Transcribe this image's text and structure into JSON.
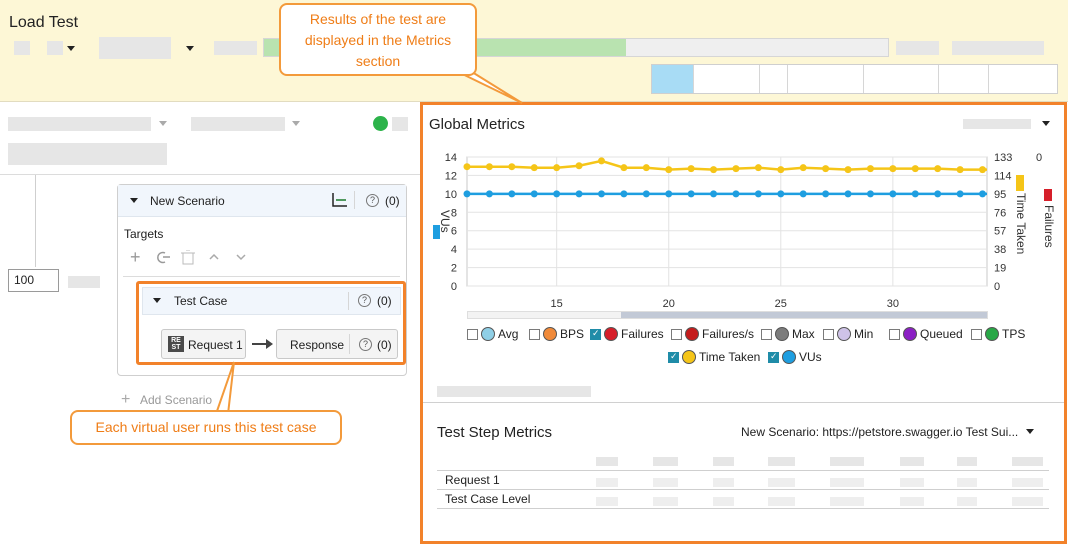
{
  "header": {
    "title": "Load Test",
    "progress_fraction": 0.58,
    "bg_color": "#fdf7d6"
  },
  "callouts": {
    "metrics": "Results of the test are displayed in the Metrics section",
    "test_case": "Each virtual user runs this test case"
  },
  "left": {
    "vus_value": "100",
    "scenario": {
      "name": "New Scenario",
      "help": "?",
      "count": "(0)",
      "targets_label": "Targets"
    },
    "test_case": {
      "name": "Test Case",
      "help": "?",
      "count": "(0)"
    },
    "request": {
      "badge_top": "RE",
      "badge_bottom": "ST",
      "label": "Request 1"
    },
    "response": {
      "label": "Response",
      "help": "?",
      "count": "(0)"
    },
    "add_scenario": "Add Scenario",
    "status_color": "#2cb34a"
  },
  "global_metrics": {
    "title": "Global Metrics"
  },
  "chart_data": {
    "type": "line",
    "x": [
      11,
      12,
      13,
      14,
      15,
      16,
      17,
      18,
      19,
      20,
      21,
      22,
      23,
      24,
      25,
      26,
      27,
      28,
      29,
      30,
      31,
      32,
      33,
      34
    ],
    "xticks": [
      15,
      20,
      25,
      30
    ],
    "xlim": [
      11,
      34.2
    ],
    "y_left": {
      "label": "VUs",
      "ticks": [
        "14",
        "12",
        "10",
        "8",
        "6",
        "4",
        "2",
        "0"
      ],
      "lim": [
        0,
        14
      ]
    },
    "y_right_time": {
      "label": "Time Taken",
      "ticks": [
        "133",
        "114",
        "95",
        "76",
        "57",
        "38",
        "19",
        "0"
      ],
      "lim": [
        0,
        133
      ]
    },
    "y_right_failures": {
      "label": "Failures",
      "ticks": [
        "0"
      ]
    },
    "series": [
      {
        "name": "Time Taken",
        "color": "#f5c518",
        "axis": "time",
        "values": [
          123,
          123,
          123,
          122,
          122,
          124,
          129,
          122,
          122,
          120,
          121,
          120,
          121,
          122,
          120,
          122,
          121,
          120,
          121,
          121,
          121,
          121,
          120,
          120
        ]
      },
      {
        "name": "VUs",
        "color": "#1e9ee0",
        "axis": "vus",
        "values": [
          10,
          10,
          10,
          10,
          10,
          10,
          10,
          10,
          10,
          10,
          10,
          10,
          10,
          10,
          10,
          10,
          10,
          10,
          10,
          10,
          10,
          10,
          10,
          10
        ]
      }
    ],
    "legend": [
      {
        "label": "Avg",
        "color": "#8fcfe6",
        "checked": false
      },
      {
        "label": "BPS",
        "color": "#f08a3a",
        "checked": false
      },
      {
        "label": "Failures",
        "color": "#d61f2a",
        "checked": true
      },
      {
        "label": "Failures/s",
        "color": "#c41c1c",
        "checked": false
      },
      {
        "label": "Max",
        "color": "#7c7c7c",
        "checked": false
      },
      {
        "label": "Min",
        "color": "#cfc3e8",
        "checked": false
      },
      {
        "label": "Queued",
        "color": "#8b1fc4",
        "checked": false
      },
      {
        "label": "TPS",
        "color": "#28a746",
        "checked": false
      },
      {
        "label": "Time Taken",
        "color": "#f5c518",
        "checked": true
      },
      {
        "label": "VUs",
        "color": "#1e9ee0",
        "checked": true
      }
    ],
    "grid": true,
    "legend_placement": "bottom"
  },
  "test_step_metrics": {
    "title": "Test Step Metrics",
    "filter": "New Scenario: https://petstore.swagger.io Test Sui...",
    "rows": [
      "Request 1",
      "Test Case Level"
    ]
  }
}
